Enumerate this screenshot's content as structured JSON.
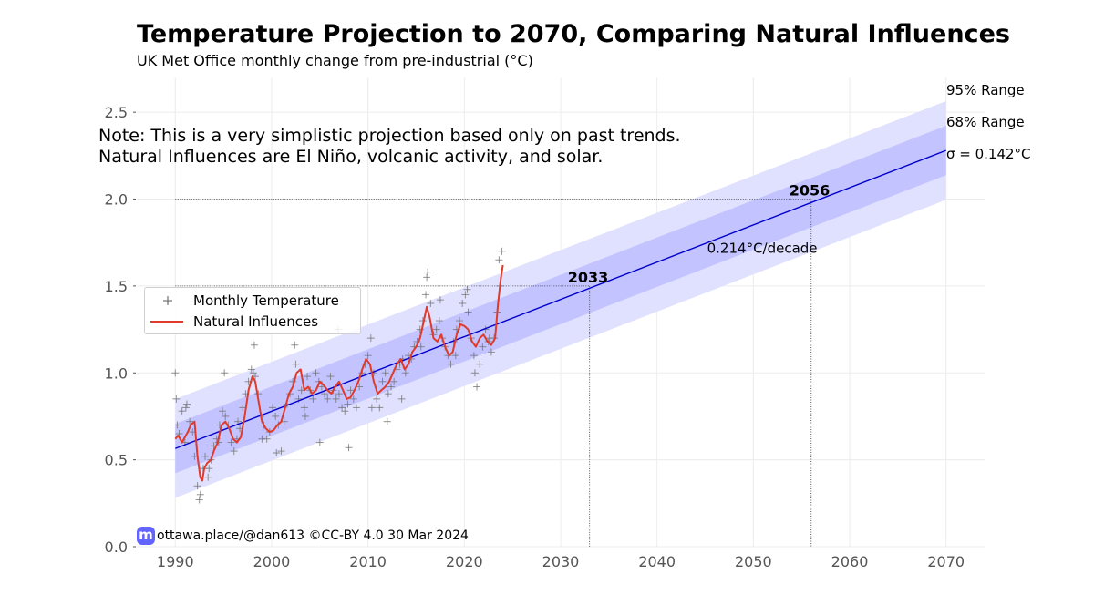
{
  "header": {
    "title": "Temperature Projection to 2070, Comparing Natural Influences",
    "subtitle": "UK Met Office monthly change from pre-industrial (°C)"
  },
  "note": {
    "line1": "Note: This is a very simplistic projection based only on past trends.",
    "line2": "Natural Influences are El Niño, volcanic activity, and solar."
  },
  "legend": {
    "monthly_label": "Monthly Temperature",
    "natural_label": "Natural Influences"
  },
  "side_labels": {
    "range95": "95% Range",
    "range68": "68% Range",
    "sigma": "σ = 0.142°C"
  },
  "credit": {
    "logo_glyph": "m",
    "text": "ottawa.place/@dan613 ©CC-BY 4.0  30 Mar 2024"
  },
  "colors": {
    "trend": "#0000cc",
    "band68": "#c3c3ff",
    "band95": "#e0e0ff",
    "natural": "#e03a2a",
    "markers": "#707070",
    "credit_logo": "#6364ff"
  },
  "chart_data": {
    "type": "line",
    "title": "Temperature Projection to 2070, Comparing Natural Influences",
    "subtitle": "UK Met Office monthly change from pre-industrial (°C)",
    "xlabel": "",
    "ylabel": "",
    "xlim": [
      1986,
      2074
    ],
    "ylim": [
      0,
      2.7
    ],
    "x_ticks": [
      1990,
      2000,
      2010,
      2020,
      2030,
      2040,
      2050,
      2060,
      2070
    ],
    "y_ticks": [
      0.0,
      0.5,
      1.0,
      1.5,
      2.0,
      2.5
    ],
    "y_tick_labels": [
      "0.0",
      "0.5",
      "1.0",
      "1.5",
      "2.0",
      "2.5"
    ],
    "grid": true,
    "legend_position": "center-left",
    "trend": {
      "x": [
        1990,
        2070
      ],
      "y": [
        0.565,
        2.28
      ],
      "rate_label": "0.214°C/decade",
      "sigma": 0.142
    },
    "bands": {
      "range68": [
        0.142,
        0.142
      ],
      "range95": [
        0.284,
        0.284
      ]
    },
    "thresholds": [
      {
        "level": 1.5,
        "year": 2033,
        "label": "2033"
      },
      {
        "level": 2.0,
        "year": 2056,
        "label": "2056"
      }
    ],
    "series": [
      {
        "name": "Natural Influences",
        "x": [
          1990.0,
          1990.3,
          1990.7,
          1991.0,
          1991.3,
          1991.6,
          1992.0,
          1992.3,
          1992.6,
          1992.8,
          1993.0,
          1993.3,
          1993.7,
          1994.0,
          1994.4,
          1994.8,
          1995.2,
          1995.6,
          1996.0,
          1996.4,
          1996.8,
          1997.2,
          1997.6,
          1998.0,
          1998.3,
          1998.6,
          1999.0,
          1999.4,
          1999.8,
          2000.2,
          2000.6,
          2001.0,
          2001.4,
          2001.8,
          2002.2,
          2002.6,
          2003.0,
          2003.4,
          2003.8,
          2004.2,
          2004.6,
          2005.0,
          2005.4,
          2005.8,
          2006.2,
          2006.6,
          2007.0,
          2007.4,
          2007.8,
          2008.2,
          2008.6,
          2009.0,
          2009.4,
          2009.8,
          2010.2,
          2010.6,
          2011.0,
          2011.4,
          2011.8,
          2012.2,
          2012.6,
          2013.0,
          2013.4,
          2013.8,
          2014.2,
          2014.6,
          2015.0,
          2015.4,
          2015.8,
          2016.1,
          2016.4,
          2016.8,
          2017.2,
          2017.6,
          2018.0,
          2018.4,
          2018.8,
          2019.2,
          2019.6,
          2020.0,
          2020.4,
          2020.8,
          2021.2,
          2021.6,
          2022.0,
          2022.4,
          2022.8,
          2023.2,
          2023.5,
          2023.8,
          2024.0
        ],
        "y": [
          0.62,
          0.64,
          0.6,
          0.63,
          0.66,
          0.7,
          0.72,
          0.52,
          0.4,
          0.38,
          0.45,
          0.48,
          0.5,
          0.55,
          0.6,
          0.7,
          0.72,
          0.68,
          0.62,
          0.6,
          0.63,
          0.75,
          0.9,
          0.98,
          0.95,
          0.85,
          0.72,
          0.68,
          0.66,
          0.67,
          0.7,
          0.72,
          0.8,
          0.88,
          0.92,
          1.0,
          1.02,
          0.9,
          0.92,
          0.88,
          0.9,
          0.95,
          0.93,
          0.9,
          0.88,
          0.92,
          0.95,
          0.9,
          0.85,
          0.86,
          0.9,
          0.95,
          1.02,
          1.08,
          1.05,
          0.95,
          0.88,
          0.9,
          0.92,
          0.95,
          1.0,
          1.05,
          1.08,
          1.02,
          1.05,
          1.12,
          1.15,
          1.2,
          1.3,
          1.38,
          1.32,
          1.2,
          1.18,
          1.22,
          1.15,
          1.1,
          1.12,
          1.22,
          1.28,
          1.27,
          1.25,
          1.18,
          1.15,
          1.2,
          1.22,
          1.18,
          1.16,
          1.2,
          1.4,
          1.55,
          1.62
        ]
      }
    ],
    "scatter": {
      "name": "Monthly Temperature",
      "x": [
        1990.0,
        1990.2,
        1990.4,
        1990.7,
        1991.0,
        1991.2,
        1991.5,
        1991.8,
        1992.0,
        1992.3,
        1992.6,
        1992.9,
        1993.1,
        1993.4,
        1993.7,
        1994.0,
        1994.3,
        1994.6,
        1994.9,
        1995.2,
        1995.5,
        1995.8,
        1996.1,
        1996.4,
        1996.7,
        1997.0,
        1997.3,
        1997.6,
        1997.9,
        1998.1,
        1998.3,
        1998.6,
        1998.9,
        1999.2,
        1999.5,
        1999.8,
        2000.1,
        2000.4,
        2000.7,
        2001.0,
        2001.3,
        2001.6,
        2001.9,
        2002.2,
        2002.5,
        2002.8,
        2003.1,
        2003.4,
        2003.7,
        2004.0,
        2004.3,
        2004.6,
        2004.9,
        2005.2,
        2005.5,
        2005.8,
        2006.1,
        2006.4,
        2006.7,
        2007.0,
        2007.3,
        2007.6,
        2007.9,
        2008.2,
        2008.5,
        2008.8,
        2009.1,
        2009.4,
        2009.7,
        2010.0,
        2010.3,
        2010.6,
        2010.9,
        2011.2,
        2011.5,
        2011.8,
        2012.1,
        2012.4,
        2012.7,
        2013.0,
        2013.3,
        2013.6,
        2013.9,
        2014.2,
        2014.5,
        2014.8,
        2015.1,
        2015.4,
        2015.7,
        2016.0,
        2016.2,
        2016.5,
        2016.8,
        2017.1,
        2017.4,
        2017.7,
        2018.0,
        2018.3,
        2018.6,
        2018.9,
        2019.2,
        2019.5,
        2019.8,
        2020.1,
        2020.4,
        2020.7,
        2021.0,
        2021.3,
        2021.6,
        2021.9,
        2022.2,
        2022.5,
        2022.8,
        2023.1,
        2023.4,
        2023.7,
        2023.9,
        1990.1,
        1991.1,
        1992.5,
        1993.5,
        1994.5,
        1995.1,
        1996.5,
        1998.2,
        1999.0,
        2000.5,
        2002.4,
        2003.5,
        2005.0,
        2006.9,
        2008.0,
        2010.4,
        2012.0,
        2013.5,
        2015.5,
        2016.1,
        2017.5,
        2019.1,
        2020.3,
        2021.1,
        2022.6,
        2023.6
      ],
      "y": [
        1.0,
        0.7,
        0.65,
        0.78,
        0.6,
        0.82,
        0.72,
        0.66,
        0.52,
        0.35,
        0.3,
        0.45,
        0.52,
        0.4,
        0.5,
        0.58,
        0.62,
        0.7,
        0.78,
        0.75,
        0.7,
        0.6,
        0.55,
        0.62,
        0.68,
        0.8,
        0.88,
        0.95,
        1.02,
        1.0,
        0.98,
        0.88,
        0.75,
        0.7,
        0.62,
        0.66,
        0.8,
        0.75,
        0.7,
        0.55,
        0.72,
        0.82,
        0.88,
        0.95,
        1.05,
        0.85,
        0.9,
        0.8,
        0.98,
        0.9,
        0.85,
        1.0,
        0.95,
        0.92,
        0.88,
        0.85,
        0.98,
        0.9,
        0.85,
        0.88,
        0.8,
        0.78,
        0.82,
        0.9,
        0.85,
        0.8,
        0.92,
        1.0,
        1.05,
        1.1,
        1.2,
        1.0,
        0.85,
        0.8,
        0.95,
        1.0,
        0.88,
        0.92,
        0.95,
        1.02,
        1.05,
        1.08,
        1.0,
        1.1,
        1.08,
        1.15,
        1.18,
        1.25,
        1.3,
        1.45,
        1.58,
        1.4,
        1.22,
        1.25,
        1.3,
        1.2,
        1.15,
        1.1,
        1.05,
        1.18,
        1.25,
        1.3,
        1.4,
        1.45,
        1.35,
        1.2,
        1.1,
        0.92,
        1.05,
        1.15,
        1.25,
        1.18,
        1.12,
        1.2,
        1.35,
        1.5,
        1.7,
        0.85,
        0.8,
        0.27,
        0.45,
        0.6,
        1.0,
        0.72,
        1.16,
        0.62,
        0.54,
        1.16,
        0.75,
        0.6,
        1.25,
        0.57,
        0.8,
        0.72,
        0.85,
        1.15,
        1.55,
        1.42,
        1.1,
        1.48,
        1.0,
        1.2,
        1.65
      ]
    }
  }
}
